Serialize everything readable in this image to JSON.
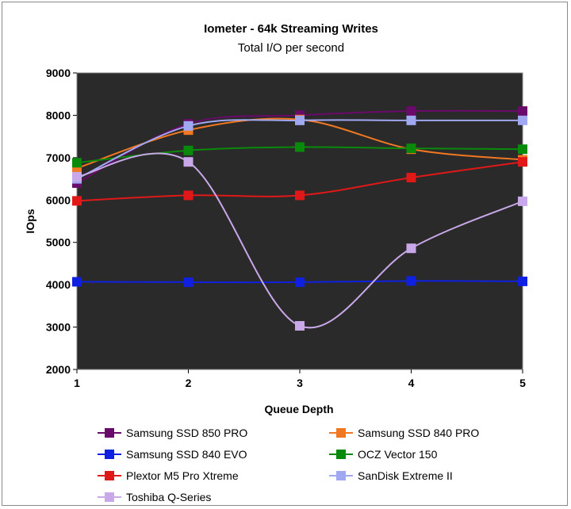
{
  "chart_data": {
    "type": "line",
    "title": "Iometer - 64k Streaming Writes",
    "subtitle": "Total I/O per second",
    "xlabel": "Queue Depth",
    "ylabel": "IOps",
    "x": [
      1,
      2,
      3,
      4,
      5
    ],
    "xlim": [
      1,
      5
    ],
    "ylim": [
      2000,
      9000
    ],
    "yticks": [
      2000,
      3000,
      4000,
      5000,
      6000,
      7000,
      8000,
      9000
    ],
    "plot_background": "#2a2a2a",
    "grid": false,
    "legend_position": "bottom",
    "series": [
      {
        "name": "Samsung SSD 850 PRO",
        "color": "#6a0a6a",
        "values": [
          6400,
          7800,
          8000,
          8100,
          8100
        ]
      },
      {
        "name": "Samsung SSD 840 PRO",
        "color": "#f07820",
        "values": [
          6750,
          7650,
          7900,
          7200,
          6950
        ]
      },
      {
        "name": "Samsung SSD 840 EVO",
        "color": "#1020e0",
        "values": [
          4070,
          4060,
          4060,
          4090,
          4080
        ]
      },
      {
        "name": "OCZ Vector 150",
        "color": "#0a8a0a",
        "values": [
          6880,
          7170,
          7250,
          7220,
          7200
        ]
      },
      {
        "name": "Plextor M5 Pro Xtreme",
        "color": "#e01818",
        "values": [
          5980,
          6110,
          6110,
          6530,
          6900
        ]
      },
      {
        "name": "SanDisk Extreme II",
        "color": "#9fa8f0",
        "values": [
          6500,
          7750,
          7880,
          7880,
          7880
        ]
      },
      {
        "name": "Toshiba Q-Series",
        "color": "#c8a8e8",
        "values": [
          6550,
          6900,
          3030,
          4860,
          5970
        ]
      }
    ]
  }
}
